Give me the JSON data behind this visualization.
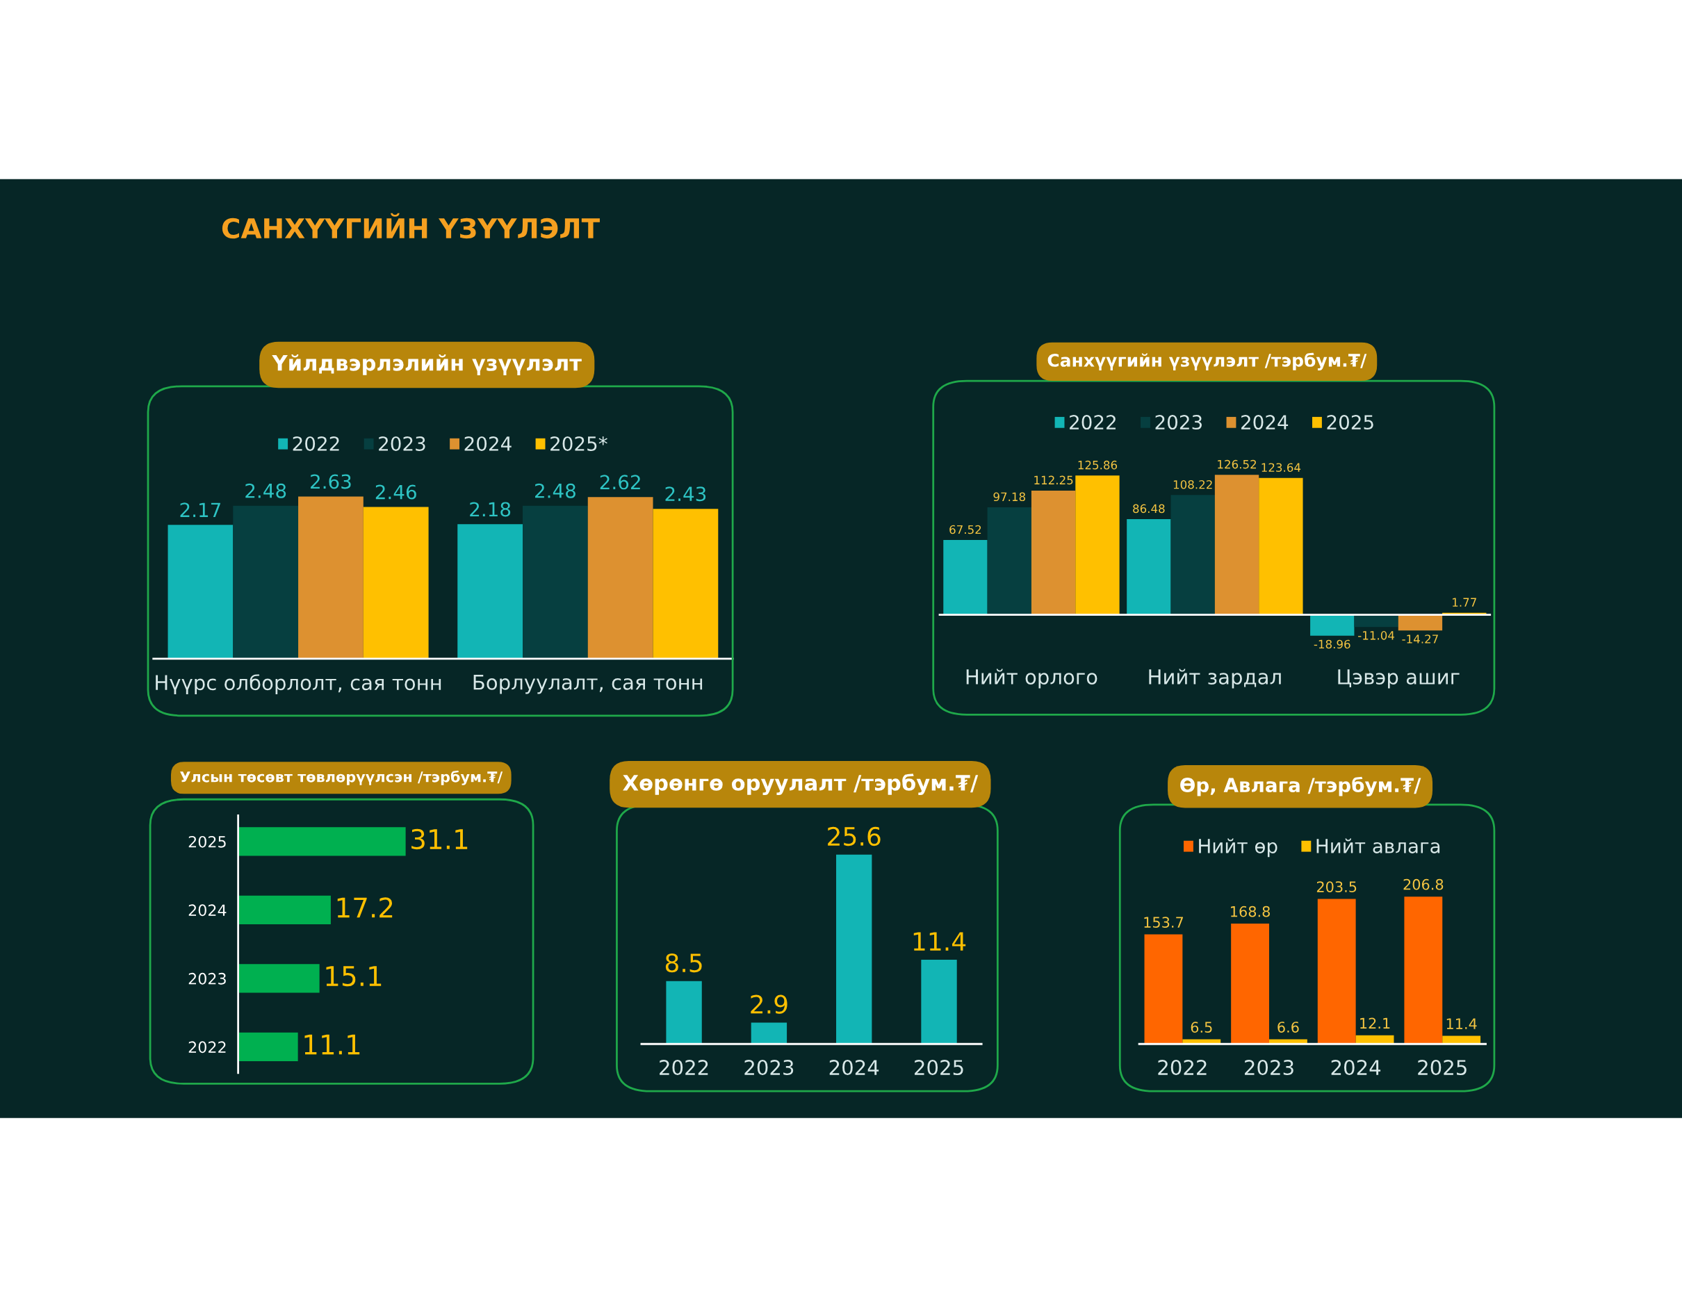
{
  "chart_data": [
    {
      "type": "other",
      "title": "САНХҮҮГИЙН ҮЗҮҮЛЭЛТ"
    },
    {
      "type": "bar",
      "title": "Үйлдвэрлэлийн үзүүлэлт",
      "categories": [
        "Нүүрс олборлолт, сая тонн",
        "Борлуулалт, сая тонн"
      ],
      "data_labels": true,
      "legend": "top",
      "series": [
        {
          "name": "2022",
          "color": "#12b5b5",
          "values": [
            2.17,
            2.18
          ]
        },
        {
          "name": "2023",
          "color": "#063f40",
          "values": [
            2.48,
            2.48
          ]
        },
        {
          "name": "2024",
          "color": "#dd9130",
          "values": [
            2.63,
            2.62
          ]
        },
        {
          "name": "2025*",
          "color": "#ffc000",
          "values": [
            2.46,
            2.43
          ]
        }
      ]
    },
    {
      "type": "bar",
      "title": "Санхүүгийн үзүүлэлт /тэрбум.₮/",
      "categories": [
        "Нийт орлого",
        "Нийт зардал",
        "Цэвэр ашиг"
      ],
      "data_labels": true,
      "legend": "top",
      "series": [
        {
          "name": "2022",
          "color": "#12b5b5",
          "values": [
            67.52,
            86.48,
            -18.96
          ]
        },
        {
          "name": "2023",
          "color": "#063f40",
          "values": [
            97.18,
            108.22,
            -11.04
          ]
        },
        {
          "name": "2024",
          "color": "#dd9130",
          "values": [
            112.25,
            126.52,
            -14.27
          ]
        },
        {
          "name": "2025",
          "color": "#ffc000",
          "values": [
            125.86,
            123.64,
            1.77
          ]
        }
      ]
    },
    {
      "type": "bar",
      "orientation": "horizontal",
      "title": "Улсын төсөвт төвлөрүүлсэн /тэрбум.₮/",
      "categories": [
        "2025",
        "2024",
        "2023",
        "2022"
      ],
      "data_labels": true,
      "series": [
        {
          "color": "#00b050",
          "values": [
            31.1,
            17.2,
            15.1,
            11.1
          ]
        }
      ]
    },
    {
      "type": "bar",
      "title": "Хөрөнгө оруулалт /тэрбум.₮/",
      "categories": [
        "2022",
        "2023",
        "2024",
        "2025"
      ],
      "data_labels": true,
      "series": [
        {
          "color": "#12b5b5",
          "values": [
            8.5,
            2.9,
            25.6,
            11.4
          ]
        }
      ]
    },
    {
      "type": "bar",
      "title": "Өр, Авлага /тэрбум.₮/",
      "categories": [
        "2022",
        "2023",
        "2024",
        "2025"
      ],
      "data_labels": true,
      "legend": "top",
      "series": [
        {
          "name": "Нийт өр",
          "color": "#ff6600",
          "values": [
            153.7,
            168.8,
            203.5,
            206.8
          ]
        },
        {
          "name": "Нийт авлага",
          "color": "#ffc000",
          "values": [
            6.5,
            6.6,
            12.1,
            11.4
          ]
        }
      ]
    }
  ]
}
